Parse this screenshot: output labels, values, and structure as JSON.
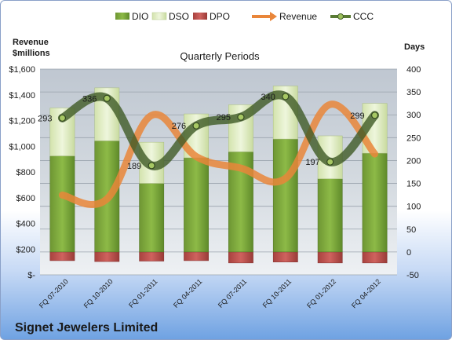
{
  "chart_data": {
    "type": "bar",
    "title": "Quarterly Periods",
    "company": "Signet Jewelers Limited",
    "left_axis_label_line1": "Revenue",
    "left_axis_label_line2": "$millions",
    "right_axis_label": "Days",
    "categories": [
      "FQ 07-2010",
      "FQ 10-2010",
      "FQ 01-2011",
      "FQ 04-2011",
      "FQ 07-2011",
      "FQ 10-2011",
      "FQ 01-2012",
      "FQ 04-2012"
    ],
    "ylim_left": [
      0,
      1600
    ],
    "left_ticks": [
      "$-",
      "$200",
      "$400",
      "$600",
      "$800",
      "$1,000",
      "$1,200",
      "$1,400",
      "$1,600"
    ],
    "left_tick_values": [
      0,
      200,
      400,
      600,
      800,
      1000,
      1200,
      1400,
      1600
    ],
    "ylim_right": [
      -50,
      400
    ],
    "right_ticks": [
      "-50",
      "0",
      "50",
      "100",
      "150",
      "200",
      "250",
      "300",
      "350",
      "400"
    ],
    "right_tick_values": [
      -50,
      0,
      50,
      100,
      150,
      200,
      250,
      300,
      350,
      400
    ],
    "grid": true,
    "legend_position": "top",
    "series": [
      {
        "name": "DIO",
        "axis": "right",
        "kind": "stacked-bar",
        "color": "#7aa33a",
        "values": [
          210,
          243,
          150,
          206,
          219,
          247,
          160,
          216
        ]
      },
      {
        "name": "DSO",
        "axis": "right",
        "kind": "stacked-bar",
        "color": "#dfecc0",
        "values": [
          105,
          116,
          90,
          96,
          103,
          116,
          94,
          109
        ]
      },
      {
        "name": "DPO",
        "axis": "right",
        "kind": "bar-below-zero",
        "color": "#c0504d",
        "values": [
          -19,
          -21,
          -20,
          -19,
          -24,
          -22,
          -24,
          -24
        ]
      },
      {
        "name": "Revenue",
        "axis": "left",
        "kind": "smooth-line",
        "color": "#e9863a",
        "values": [
          620,
          590,
          1240,
          920,
          830,
          750,
          1325,
          940
        ]
      },
      {
        "name": "CCC",
        "axis": "right",
        "kind": "smooth-line",
        "color": "#5a7b35",
        "values": [
          293,
          336,
          189,
          276,
          295,
          340,
          197,
          299
        ]
      }
    ],
    "ccc_labels": [
      "293",
      "336",
      "189",
      "276",
      "295",
      "340",
      "197",
      "299"
    ]
  }
}
